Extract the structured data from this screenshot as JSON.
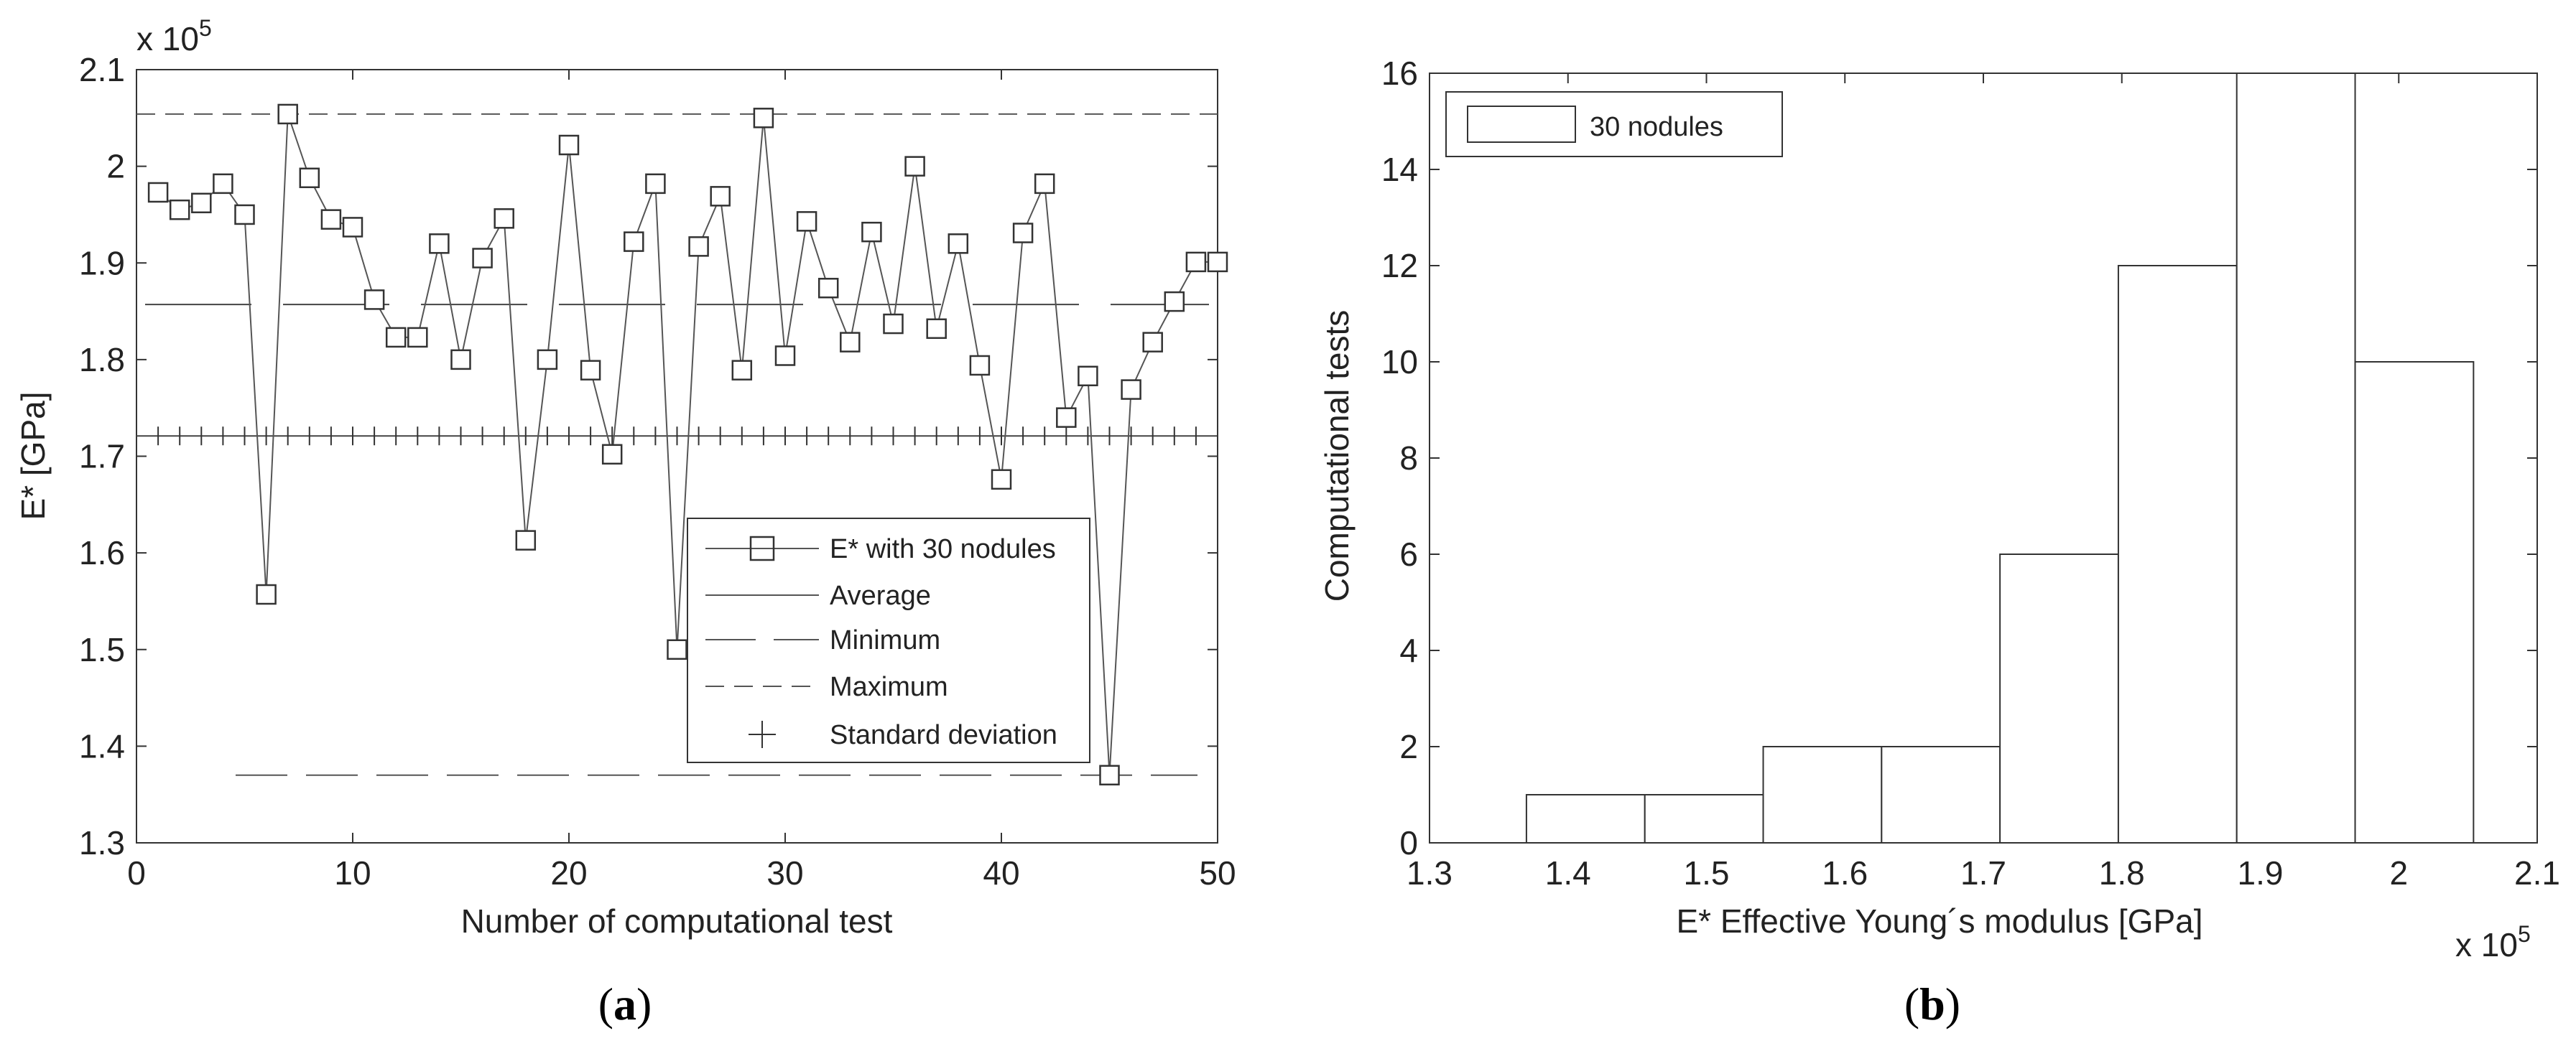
{
  "chart_data": [
    {
      "id": "a",
      "type": "line",
      "caption_open": "(",
      "caption_letter": "a",
      "caption_close": ")",
      "xlabel": "Number of computational test",
      "ylabel": "E* [GPa]",
      "y_multiplier": "x 10",
      "y_exponent": "5",
      "xlim": [
        0,
        50
      ],
      "ylim": [
        1.3,
        2.1
      ],
      "xticks": [
        "0",
        "10",
        "20",
        "30",
        "40",
        "50"
      ],
      "yticks": [
        "1.3",
        "1.4",
        "1.5",
        "1.6",
        "1.7",
        "1.8",
        "1.9",
        "2",
        "2.1"
      ],
      "series": [
        {
          "name": "E* with 30 nodules",
          "x": [
            1,
            2,
            3,
            4,
            5,
            6,
            7,
            8,
            9,
            10,
            11,
            12,
            13,
            14,
            15,
            16,
            17,
            18,
            19,
            20,
            21,
            22,
            23,
            24,
            25,
            26,
            27,
            28,
            29,
            30,
            31,
            32,
            33,
            34,
            35,
            36,
            37,
            38,
            39,
            40,
            41,
            42,
            43,
            44,
            45,
            46,
            47,
            48,
            49,
            50
          ],
          "values": [
            1.973,
            1.955,
            1.962,
            1.982,
            1.95,
            1.557,
            2.054,
            1.988,
            1.945,
            1.937,
            1.862,
            1.823,
            1.823,
            1.92,
            1.8,
            1.905,
            1.946,
            1.613,
            1.8,
            2.022,
            1.789,
            1.702,
            1.922,
            1.982,
            1.5,
            1.917,
            1.969,
            1.789,
            2.05,
            1.804,
            1.943,
            1.874,
            1.818,
            1.932,
            1.837,
            2.0,
            1.832,
            1.92,
            1.794,
            1.676,
            1.931,
            1.982,
            1.74,
            1.783,
            1.37,
            1.769,
            1.818,
            1.86,
            1.901,
            1.901
          ]
        },
        {
          "name": "Average",
          "value": 1.857
        },
        {
          "name": "Minimum",
          "value": 1.37
        },
        {
          "name": "Maximum",
          "value": 2.054
        },
        {
          "name": "Standard deviation",
          "value": 1.721
        }
      ],
      "legend_position": "bottom-right"
    },
    {
      "id": "b",
      "type": "bar",
      "caption_open": "(",
      "caption_letter": "b",
      "caption_close": ")",
      "xlabel": "E* Effective Young´s modulus [GPa]",
      "ylabel": "Computational tests",
      "x_multiplier": "x 10",
      "x_exponent": "5",
      "xlim": [
        1.3,
        2.1
      ],
      "ylim": [
        0,
        16
      ],
      "xticks": [
        "1.3",
        "1.4",
        "1.5",
        "1.6",
        "1.7",
        "1.8",
        "1.9",
        "2",
        "2.1"
      ],
      "yticks": [
        "0",
        "2",
        "4",
        "6",
        "8",
        "10",
        "12",
        "14",
        "16"
      ],
      "bin_edges": [
        1.37,
        1.4555,
        1.541,
        1.6265,
        1.712,
        1.7975,
        1.883,
        1.9685,
        2.054
      ],
      "series": [
        {
          "name": "30 nodules",
          "values": [
            1,
            1,
            2,
            2,
            6,
            12,
            16,
            10
          ]
        }
      ],
      "legend_position": "top-left"
    }
  ]
}
